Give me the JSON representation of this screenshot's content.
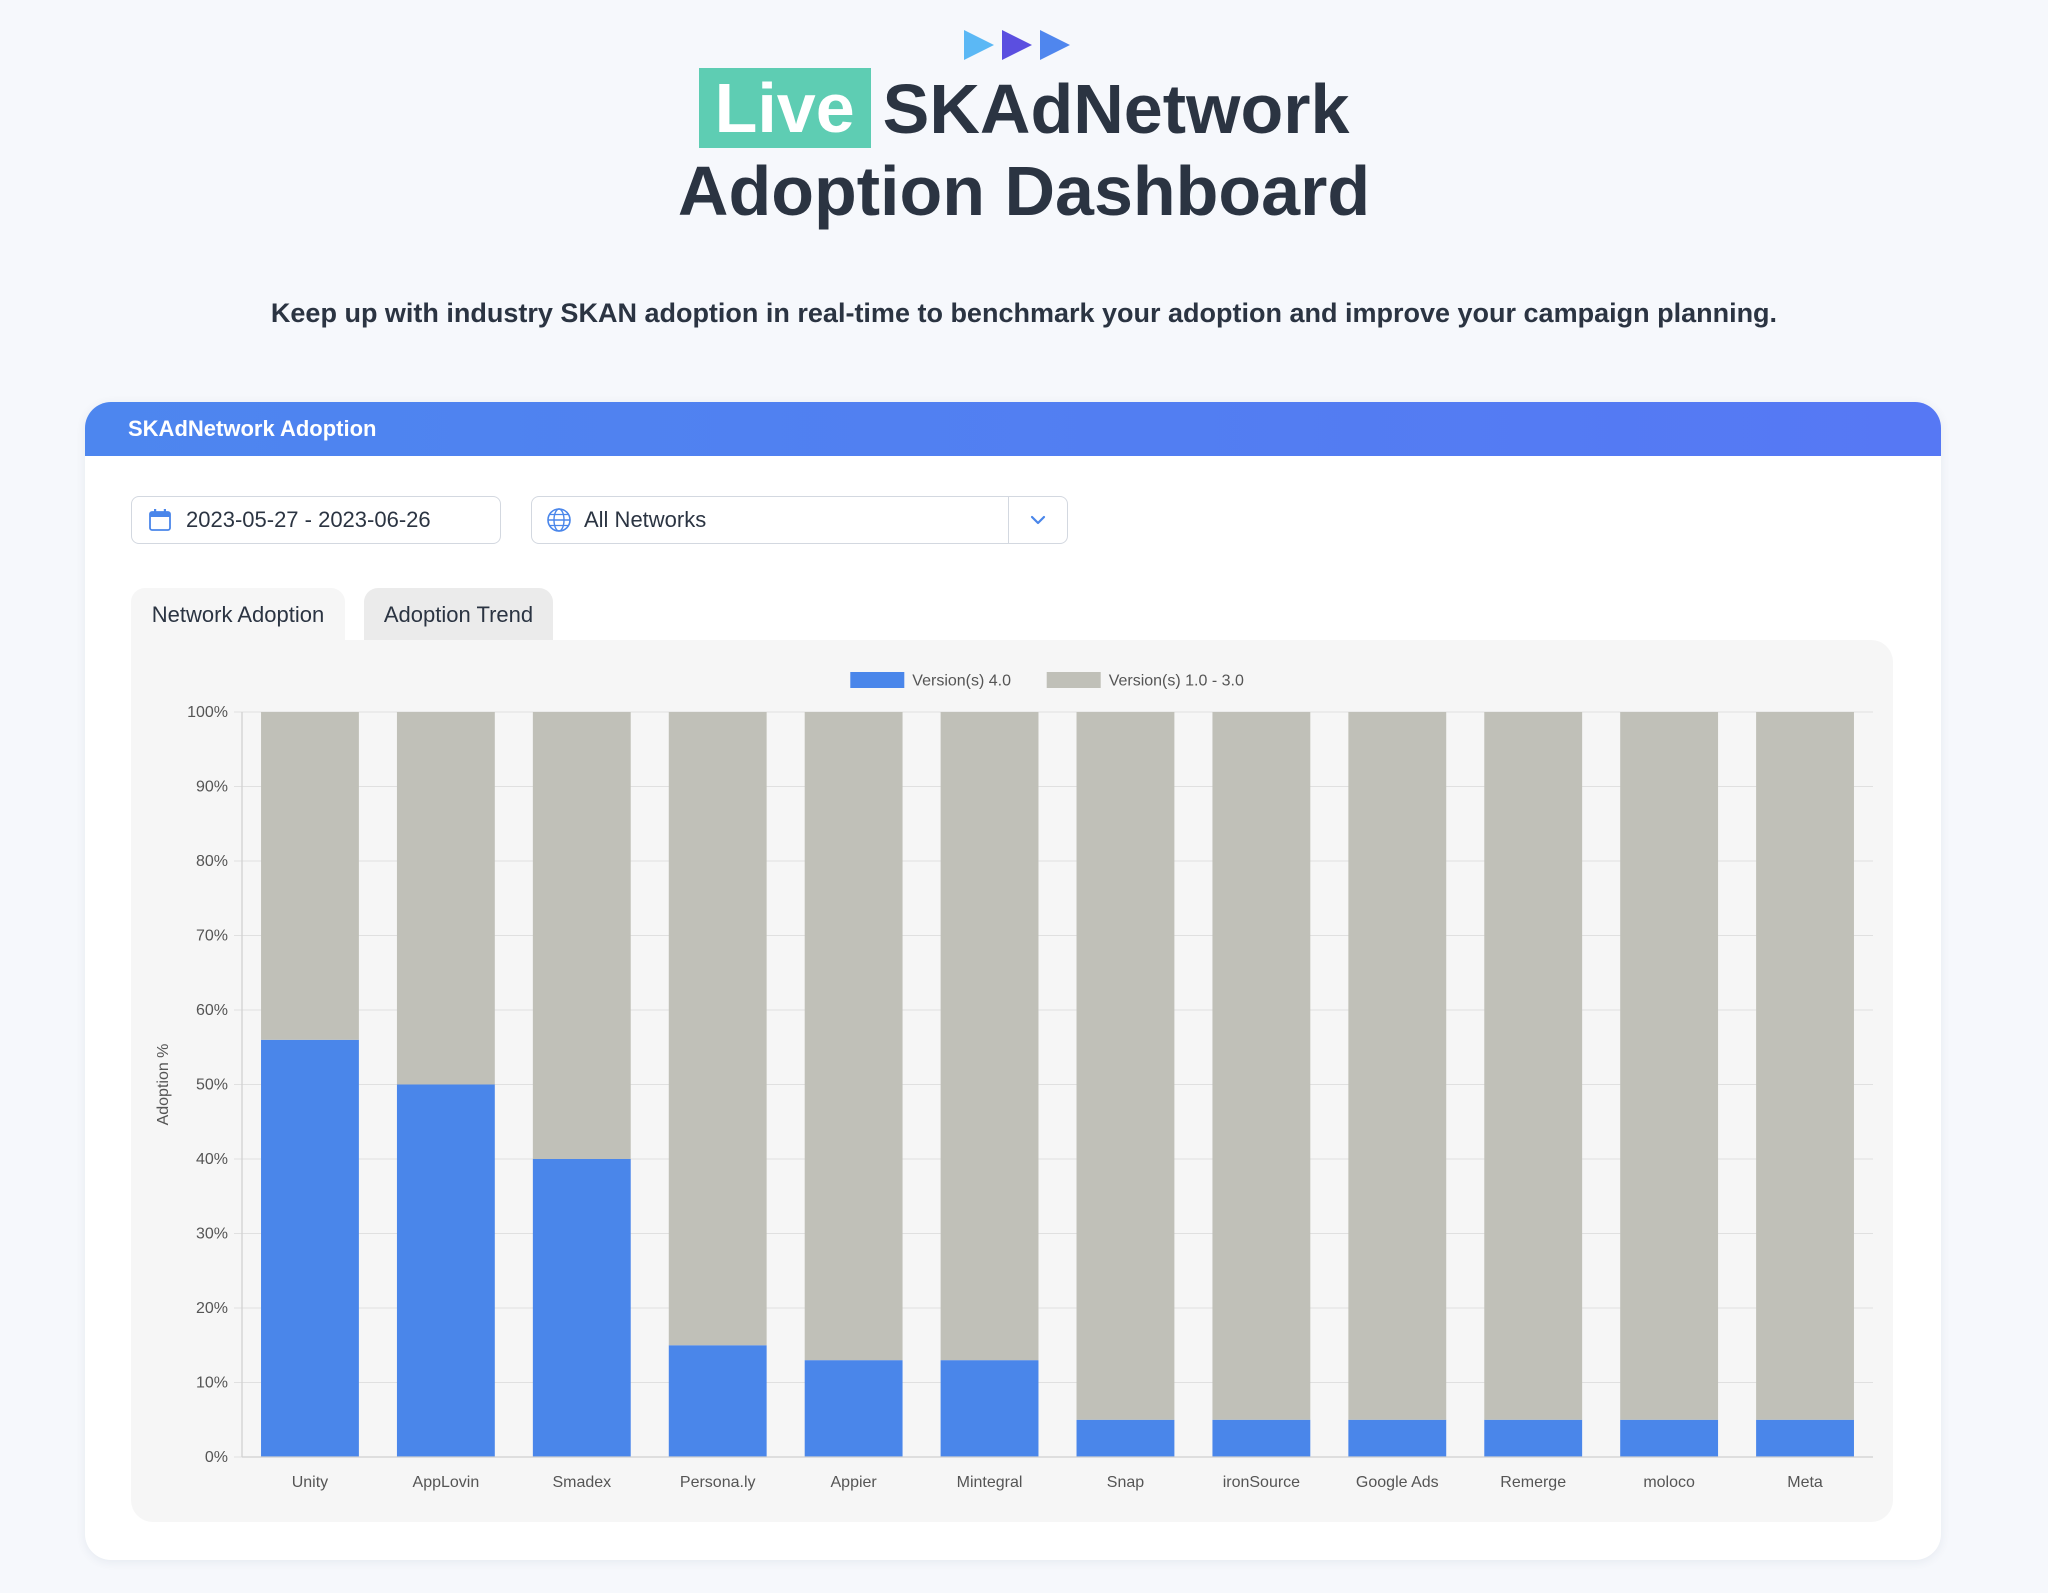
{
  "page": {
    "title_badge": "Live",
    "title_line1": "SKAdNetwork",
    "title_line2": "Adoption Dashboard",
    "subtitle": "Keep up with industry SKAN adoption in real-time to benchmark your adoption and improve your campaign planning."
  },
  "colors": {
    "badge": "#5ecdb3",
    "header": "#5280f2",
    "series_v4": "#4a86ea",
    "series_v1_3": "#c0c0b8"
  },
  "card": {
    "header_title": "SKAdNetwork Adoption",
    "date_range": "2023-05-27 - 2023-06-26",
    "network_select": "All Networks",
    "tabs": [
      {
        "label": "Network Adoption",
        "active": true
      },
      {
        "label": "Adoption Trend",
        "active": false
      }
    ]
  },
  "chart_data": {
    "type": "bar",
    "stacked": true,
    "ylabel": "Adoption %",
    "ylim": [
      0,
      100
    ],
    "yticks": [
      "0%",
      "10%",
      "20%",
      "30%",
      "40%",
      "50%",
      "60%",
      "70%",
      "80%",
      "90%",
      "100%"
    ],
    "legend_position": "top-center",
    "grid": true,
    "categories": [
      "Unity",
      "AppLovin",
      "Smadex",
      "Persona.ly",
      "Appier",
      "Mintegral",
      "Snap",
      "ironSource",
      "Google Ads",
      "Remerge",
      "moloco",
      "Meta"
    ],
    "series": [
      {
        "name": "Version(s) 4.0",
        "values": [
          56,
          50,
          40,
          15,
          13,
          13,
          5,
          5,
          5,
          5,
          5,
          5
        ]
      },
      {
        "name": "Version(s) 1.0 - 3.0",
        "values": [
          44,
          50,
          60,
          85,
          87,
          87,
          95,
          95,
          95,
          95,
          95,
          95
        ]
      }
    ]
  }
}
